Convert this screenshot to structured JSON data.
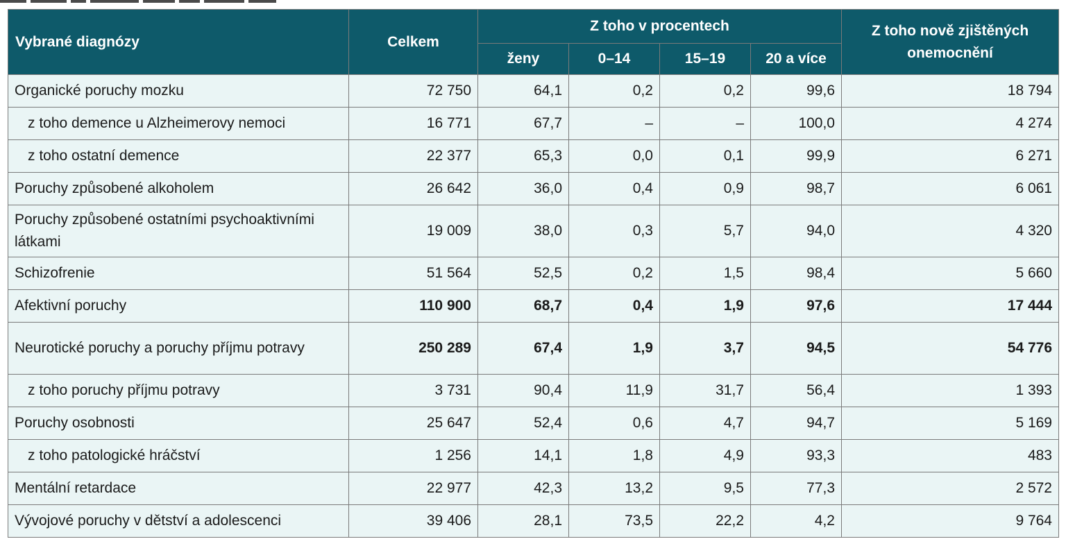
{
  "header": {
    "diagnosis": "Vybrané diagnózy",
    "total": "Celkem",
    "percent_group": "Z toho v procentech",
    "women": "ženy",
    "age_0_14": "0–14",
    "age_15_19": "15–19",
    "age_20_plus": "20 a více",
    "new_cases": "Z toho nově zjištěných onemocnění"
  },
  "rows": [
    {
      "label": "Organické poruchy mozku",
      "total": "72 750",
      "women": "64,1",
      "a0_14": "0,2",
      "a15_19": "0,2",
      "a20": "99,6",
      "new": "18 794"
    },
    {
      "label": "z toho demence u Alzheimerovy nemoci",
      "total": "16 771",
      "women": "67,7",
      "a0_14": "–",
      "a15_19": "–",
      "a20": "100,0",
      "new": "4 274"
    },
    {
      "label": "z toho ostatní demence",
      "total": "22 377",
      "women": "65,3",
      "a0_14": "0,0",
      "a15_19": "0,1",
      "a20": "99,9",
      "new": "6 271"
    },
    {
      "label": "Poruchy způsobené alkoholem",
      "total": "26 642",
      "women": "36,0",
      "a0_14": "0,4",
      "a15_19": "0,9",
      "a20": "98,7",
      "new": "6 061"
    },
    {
      "label": "Poruchy způsobené ostatními psychoaktivními látkami",
      "total": "19 009",
      "women": "38,0",
      "a0_14": "0,3",
      "a15_19": "5,7",
      "a20": "94,0",
      "new": "4 320"
    },
    {
      "label": "Schizofrenie",
      "total": "51 564",
      "women": "52,5",
      "a0_14": "0,2",
      "a15_19": "1,5",
      "a20": "98,4",
      "new": "5 660"
    },
    {
      "label": "Afektivní poruchy",
      "total": "110 900",
      "women": "68,7",
      "a0_14": "0,4",
      "a15_19": "1,9",
      "a20": "97,6",
      "new": "17 444"
    },
    {
      "label": "Neurotické poruchy a poruchy příjmu potravy",
      "total": "250 289",
      "women": "67,4",
      "a0_14": "1,9",
      "a15_19": "3,7",
      "a20": "94,5",
      "new": "54 776"
    },
    {
      "label": "z toho poruchy příjmu potravy",
      "total": "3 731",
      "women": "90,4",
      "a0_14": "11,9",
      "a15_19": "31,7",
      "a20": "56,4",
      "new": "1 393"
    },
    {
      "label": "Poruchy osobnosti",
      "total": "25 647",
      "women": "52,4",
      "a0_14": "0,6",
      "a15_19": "4,7",
      "a20": "94,7",
      "new": "5 169"
    },
    {
      "label": "z toho patologické hráčství",
      "total": "1 256",
      "women": "14,1",
      "a0_14": "1,8",
      "a15_19": "4,9",
      "a20": "93,3",
      "new": "483"
    },
    {
      "label": "Mentální retardace",
      "total": "22 977",
      "women": "42,3",
      "a0_14": "13,2",
      "a15_19": "9,5",
      "a20": "77,3",
      "new": "2 572"
    },
    {
      "label": "Vývojové poruchy v dětství a adolescenci",
      "total": "39 406",
      "women": "28,1",
      "a0_14": "73,5",
      "a15_19": "22,2",
      "a20": "4,2",
      "new": "9 764"
    }
  ]
}
